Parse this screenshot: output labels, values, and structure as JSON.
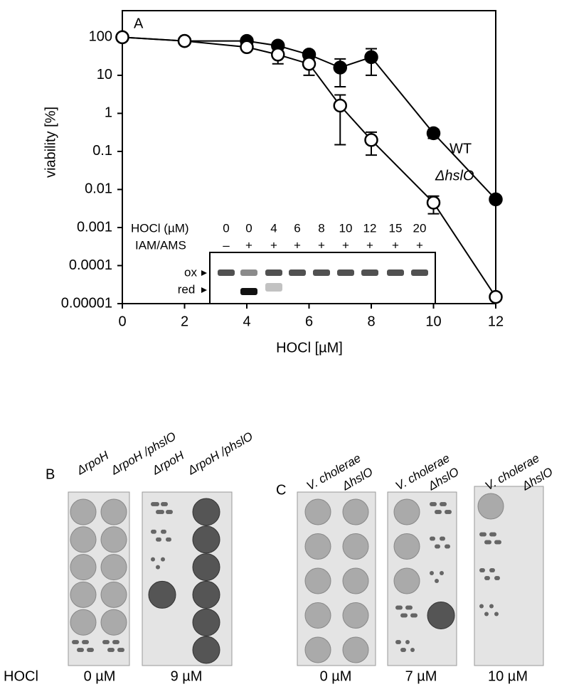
{
  "chart_data": {
    "type": "line",
    "panel_label": "A",
    "xlabel": "HOCl [µM]",
    "ylabel": "viability [%]",
    "log_y": true,
    "xlim": [
      0,
      12
    ],
    "xticks": [
      0,
      2,
      4,
      6,
      8,
      10,
      12
    ],
    "ylim": [
      1e-05,
      500
    ],
    "yticks": [
      100,
      10,
      1,
      0.1,
      0.01,
      0.001,
      0.0001,
      1e-05
    ],
    "series": [
      {
        "name": "WT",
        "color": "#000000",
        "marker_fill": "#000000",
        "x": [
          0,
          2,
          4,
          5,
          6,
          7,
          8,
          10,
          12
        ],
        "values": [
          100,
          80,
          80,
          60,
          35,
          16,
          30,
          0.3,
          0.0055
        ],
        "errors": [
          null,
          null,
          10,
          10,
          8,
          11,
          20,
          0.08,
          null
        ]
      },
      {
        "name": "ΔhslO",
        "color": "#000000",
        "marker_fill": "#ffffff",
        "x": [
          0,
          2,
          4,
          5,
          6,
          7,
          8,
          10,
          12
        ],
        "values": [
          100,
          80,
          55,
          35,
          20,
          1.6,
          0.2,
          0.0045,
          1.5e-05
        ],
        "errors": [
          null,
          15,
          8,
          15,
          10,
          1.45,
          0.12,
          0.0022,
          null
        ]
      }
    ]
  },
  "inset": {
    "row_labels": [
      "HOCl (µM)",
      "IAM/AMS"
    ],
    "hocl": [
      "0",
      "0",
      "4",
      "6",
      "8",
      "10",
      "12",
      "15",
      "20"
    ],
    "iam": [
      "–",
      "+",
      "+",
      "+",
      "+",
      "+",
      "+",
      "+",
      "+"
    ],
    "bands": [
      "ox",
      "red"
    ]
  },
  "row_label": "HOCl",
  "panel_b": {
    "label": "B",
    "columns": [
      "ΔrpoH",
      "ΔrpoH /phslO",
      "ΔrpoH",
      "ΔrpoH /phslO"
    ],
    "doses": [
      "0 µM",
      "9 µM"
    ]
  },
  "panel_c": {
    "label": "C",
    "columns": [
      "V. cholerae",
      "ΔhslO",
      "V. cholerae",
      "ΔhslO",
      "V. cholerae",
      "ΔhslO"
    ],
    "doses": [
      "0 µM",
      "7 µM",
      "10 µM"
    ]
  }
}
